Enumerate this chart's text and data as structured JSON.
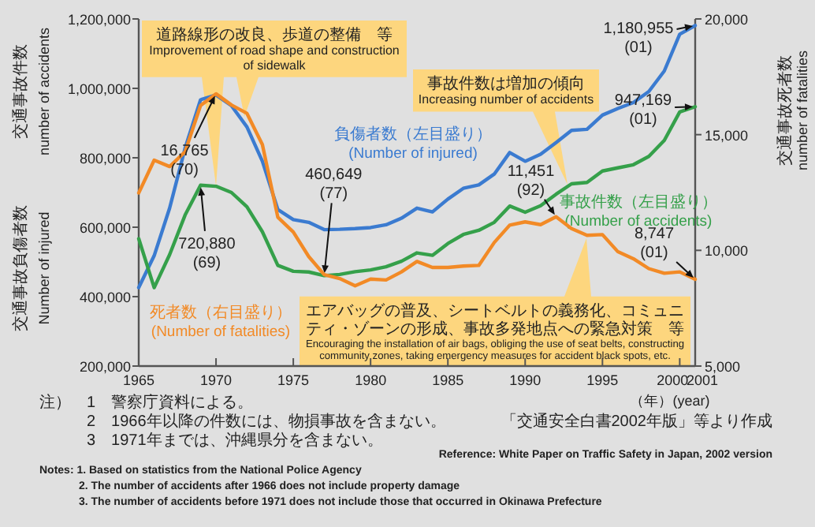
{
  "chart_data": {
    "type": "line",
    "xlabel": "（年）(year)",
    "ylabel": "交通事故件数\nnumber of accidents\n交通事故負傷者数\nNumber of injured",
    "y2label": "交通事故死者数\nnumber of fatalities",
    "x": [
      1965,
      1966,
      1967,
      1968,
      1969,
      1970,
      1971,
      1972,
      1973,
      1974,
      1975,
      1976,
      1977,
      1978,
      1979,
      1980,
      1981,
      1982,
      1983,
      1984,
      1985,
      1986,
      1987,
      1988,
      1989,
      1990,
      1991,
      1992,
      1993,
      1994,
      1995,
      1996,
      1997,
      1998,
      1999,
      2000,
      2001
    ],
    "xlim": [
      1965,
      2001
    ],
    "xticks": [
      1965,
      1970,
      1975,
      1980,
      1985,
      1990,
      1995,
      2000,
      2001
    ],
    "ylim": [
      200000,
      1200000
    ],
    "yticks": [
      {
        "value": 200000,
        "label": "200,000"
      },
      {
        "value": 400000,
        "label": "400,000"
      },
      {
        "value": 600000,
        "label": "600,000"
      },
      {
        "value": 800000,
        "label": "800,000"
      },
      {
        "value": 1000000,
        "label": "1,000,000"
      },
      {
        "value": 1200000,
        "label": "1,200,000"
      }
    ],
    "y2lim": [
      5000,
      20000
    ],
    "y2ticks": [
      {
        "value": 5000,
        "label": "5,000"
      },
      {
        "value": 10000,
        "label": "10,000"
      },
      {
        "value": 15000,
        "label": "15,000"
      },
      {
        "value": 20000,
        "label": "20,000"
      }
    ],
    "series": [
      {
        "name": "負傷者数（左目盛り）\n(Number of injured)",
        "color": "#3b7bd0",
        "values": [
          426000,
          518000,
          655000,
          828000,
          967000,
          981000,
          950000,
          889000,
          790000,
          651000,
          622000,
          614000,
          593000,
          594000,
          596000,
          599000,
          607000,
          626000,
          655000,
          644000,
          681000,
          712000,
          722000,
          753000,
          815000,
          790000,
          810000,
          844000,
          879000,
          882000,
          923000,
          942000,
          959000,
          991000,
          1050000,
          1156000,
          1180955
        ],
        "value_labels": [
          null,
          null,
          null,
          null,
          null,
          null,
          null,
          null,
          null,
          null,
          null,
          null,
          null,
          null,
          null,
          null,
          null,
          null,
          null,
          null,
          null,
          null,
          null,
          null,
          null,
          null,
          null,
          null,
          null,
          null,
          null,
          null,
          null,
          null,
          null,
          null,
          "1,180,955 (01)"
        ]
      },
      {
        "name": "事故件数（左目盛り）\n(Number of accidents)",
        "color": "#35a04a",
        "values": [
          567000,
          426000,
          521000,
          635000,
          720880,
          718000,
          700000,
          659000,
          587000,
          490000,
          473000,
          471000,
          460649,
          464000,
          472000,
          477000,
          486000,
          502000,
          526000,
          519000,
          553000,
          579000,
          591000,
          614000,
          661000,
          643000,
          662000,
          695000,
          725000,
          729000,
          762000,
          771000,
          780000,
          804000,
          850000,
          932000,
          947169
        ],
        "value_labels": [
          null,
          null,
          null,
          null,
          "720,880 (69)",
          null,
          null,
          null,
          null,
          null,
          null,
          null,
          "460,649 (77)",
          null,
          null,
          null,
          null,
          null,
          null,
          null,
          null,
          null,
          null,
          null,
          null,
          null,
          null,
          null,
          null,
          null,
          null,
          null,
          null,
          null,
          null,
          null,
          "947,169 (01)"
        ]
      },
      {
        "name": "死者数（右目盛り）\n(Number of fatalities)",
        "color": "#f28a26",
        "axis": "y2",
        "values": [
          12480,
          13900,
          13620,
          14260,
          16260,
          16765,
          16280,
          15920,
          14570,
          11430,
          10790,
          9730,
          8950,
          8780,
          8470,
          8760,
          8720,
          9070,
          9520,
          9260,
          9260,
          9320,
          9350,
          10340,
          11090,
          11230,
          11110,
          11451,
          10940,
          10650,
          10680,
          9940,
          9640,
          9210,
          9010,
          9070,
          8747
        ],
        "value_labels": [
          null,
          null,
          null,
          null,
          null,
          "16,765 (70)",
          null,
          null,
          null,
          null,
          null,
          null,
          null,
          null,
          null,
          null,
          null,
          null,
          null,
          null,
          null,
          null,
          null,
          null,
          null,
          null,
          null,
          "11,451 (92)",
          null,
          null,
          null,
          null,
          null,
          null,
          null,
          null,
          "8,747 (01)"
        ]
      }
    ],
    "annotations": [
      {
        "text": "道路線形の改良、歩道の整備　等\nImprovement of road shape and construction of sidewalk",
        "x": 1970,
        "y": 718000
      },
      "事故件数は増加の傾向\nIncreasing number of accidents",
      "エアバッグの普及、シートベルトの義務化、コミュニティ・ゾーンの形成、事故多発地点への緊急対策　等\nEncouraging the installation of air bags, obliging the use of seat belts, constructing community zones, taking emergency measures for accident black spots, etc.",
      "注）　1　警察庁資料による。",
      "2　1966年以降の件数には、物損事故を含まない。",
      "3　1971年までは、沖縄県分を含まない。",
      "「交通安全白書2002年版」等より作成",
      "Reference: White Paper on Traffic Safety in Japan, 2002 version",
      "Notes: 1. Based on statistics from the National Police Agency",
      "2. The number of accidents after 1966 does not include property damage",
      "3. The number of accidents before 1971 does not include those that occurred in Okinawa Prefecture"
    ]
  }
}
